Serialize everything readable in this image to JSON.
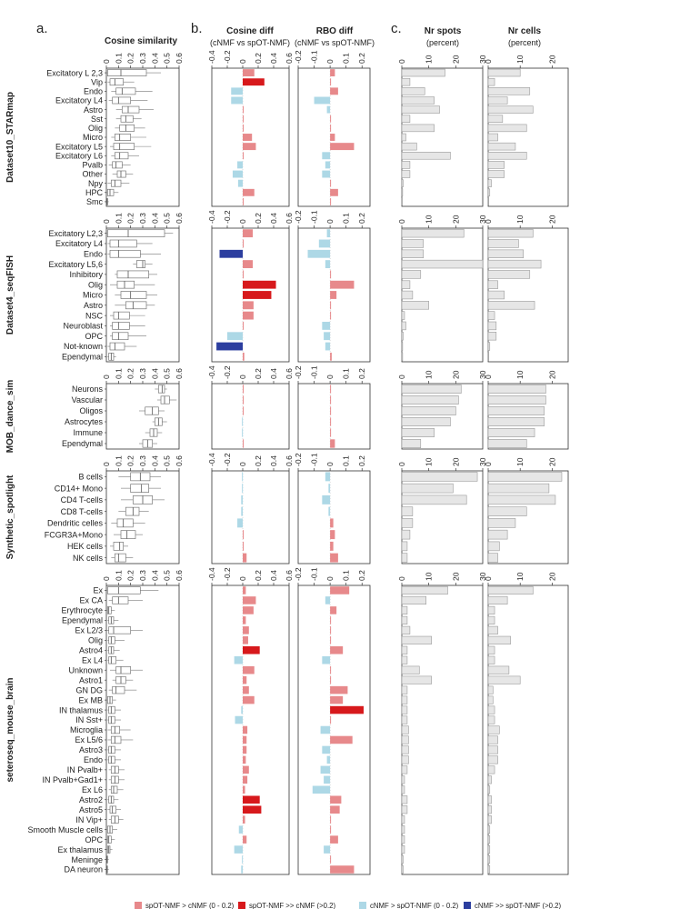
{
  "panels": {
    "a": "a.",
    "b": "b.",
    "c": "c.",
    "cosine_similarity": "Cosine similarity",
    "cosine_diff": "Cosine diff",
    "cosine_diff_sub": "(cNMF vs spOT-NMF)",
    "rbo_diff": "RBO diff",
    "rbo_diff_sub": "(cNMF vs spOT-NMF)",
    "nr_spots": "Nr spots",
    "nr_spots_sub": "(percent)",
    "nr_cells": "Nr cells",
    "nr_cells_sub": "(percent)"
  },
  "legend": [
    {
      "label": "spOT-NMF > cNMF (0 - 0.2)",
      "color": "#e7898b"
    },
    {
      "label": "spOT-NMF >> cNMF (>0.2)",
      "color": "#d7191c"
    },
    {
      "label": "cNMF > spOT-NMF (0 - 0.2)",
      "color": "#add8e6"
    },
    {
      "label": "cNMF >> spOT-NMF (>0.2)",
      "color": "#2c3e9f"
    }
  ],
  "colors": {
    "pos_small": "#e7898b",
    "pos_big": "#d7191c",
    "neg_small": "#add8e6",
    "neg_big": "#2c3e9f",
    "count_bar": "#e6e6e6",
    "count_edge": "#9a9a9a"
  },
  "chart_data": {
    "type": "bar",
    "axes": {
      "cosine_similarity": {
        "ticks": [
          "0",
          "0.1",
          "0.2",
          "0.3",
          "0.4",
          "0.5",
          "0.6"
        ],
        "xlim": [
          0,
          0.6
        ]
      },
      "cosine_diff": {
        "ticks": [
          "-0.4",
          "-0.2",
          "0",
          "0.2",
          "0.4",
          "0.6"
        ],
        "xlim": [
          -0.4,
          0.6
        ]
      },
      "rbo_diff": {
        "ticks": [
          "-0.2",
          "-0.1",
          "0",
          "0.1",
          "0.2"
        ],
        "xlim": [
          -0.2,
          0.25
        ]
      },
      "nr_spots": {
        "ticks": [
          "0",
          "10",
          "20",
          "30"
        ],
        "xlim": [
          0,
          30
        ]
      },
      "nr_cells": {
        "ticks": [
          "0",
          "10",
          "20"
        ],
        "xlim": [
          0,
          25
        ]
      }
    },
    "datasets": [
      {
        "name": "Dataset10_STARmap",
        "categories": [
          "Excitatory L 2,3",
          "Vip",
          "Endo",
          "Excitatory L4",
          "Astro",
          "Sst",
          "Olig",
          "Micro",
          "Excitatory L5",
          "Excitatory L6",
          "Pvalb",
          "Other",
          "Npy",
          "HPC",
          "Smc"
        ],
        "box": [
          [
            0,
            0.01,
            0.12,
            0.33,
            0.45
          ],
          [
            0.01,
            0.03,
            0.07,
            0.14,
            0.23
          ],
          [
            0.04,
            0.08,
            0.13,
            0.24,
            0.38
          ],
          [
            0.02,
            0.05,
            0.1,
            0.2,
            0.34
          ],
          [
            0.08,
            0.13,
            0.18,
            0.27,
            0.39
          ],
          [
            0.08,
            0.12,
            0.16,
            0.22,
            0.29
          ],
          [
            0.07,
            0.11,
            0.16,
            0.23,
            0.32
          ],
          [
            0.04,
            0.07,
            0.11,
            0.2,
            0.33
          ],
          [
            0.03,
            0.06,
            0.11,
            0.23,
            0.37
          ],
          [
            0.04,
            0.07,
            0.11,
            0.18,
            0.27
          ],
          [
            0.02,
            0.05,
            0.08,
            0.13,
            0.2
          ],
          [
            0.05,
            0.09,
            0.12,
            0.16,
            0.22
          ],
          [
            0.01,
            0.04,
            0.07,
            0.12,
            0.19
          ],
          [
            0,
            0.01,
            0.03,
            0.06,
            0.1
          ],
          [
            0,
            0.003,
            0.006,
            0.01,
            0.02
          ]
        ],
        "cos_diff": [
          0.15,
          0.28,
          -0.15,
          -0.15,
          0,
          0,
          0,
          0.12,
          0.17,
          0,
          -0.07,
          -0.13,
          -0.06,
          0.15,
          0
        ],
        "rbo_diff": [
          0.03,
          0,
          0.05,
          -0.1,
          -0.02,
          0,
          0,
          0.03,
          0.15,
          -0.05,
          -0.03,
          -0.05,
          0,
          0.05,
          0
        ],
        "nr_spots": [
          16,
          3,
          8.5,
          12,
          14,
          3,
          12,
          1.5,
          5.5,
          18,
          3,
          3,
          0.5,
          0.3,
          0.1
        ],
        "nr_cells": [
          10,
          2,
          13,
          6,
          14,
          4.5,
          12,
          3,
          8.5,
          12,
          5,
          5,
          1,
          0.5,
          0.2
        ]
      },
      {
        "name": "Dataset4_seqFISH",
        "categories": [
          "Excitatory L2,3",
          "Excitatory L4",
          "Endo",
          "Excitatory L5,6",
          "Inhibitory",
          "Olig",
          "Micro",
          "Astro",
          "NSC",
          "Neuroblast",
          "OPC",
          "Not-known",
          "Ependymal"
        ],
        "box": [
          [
            0,
            0.01,
            0.18,
            0.48,
            0.55
          ],
          [
            0.01,
            0.03,
            0.1,
            0.25,
            0.38
          ],
          [
            0.01,
            0.03,
            0.1,
            0.28,
            0.45
          ],
          [
            0.22,
            0.25,
            0.3,
            0.32,
            0.38
          ],
          [
            0.07,
            0.09,
            0.18,
            0.35,
            0.42
          ],
          [
            0.03,
            0.09,
            0.15,
            0.23,
            0.4
          ],
          [
            0.07,
            0.12,
            0.2,
            0.33,
            0.42
          ],
          [
            0.07,
            0.16,
            0.22,
            0.33,
            0.4
          ],
          [
            0.03,
            0.06,
            0.1,
            0.19,
            0.32
          ],
          [
            0.03,
            0.05,
            0.1,
            0.19,
            0.32
          ],
          [
            0.03,
            0.05,
            0.1,
            0.18,
            0.33
          ],
          [
            0.01,
            0.03,
            0.07,
            0.15,
            0.25
          ],
          [
            0.01,
            0.02,
            0.04,
            0.06,
            0.08
          ]
        ],
        "cos_diff": [
          0.13,
          0,
          -0.3,
          0.13,
          0,
          0.43,
          0.37,
          0.14,
          0.14,
          0,
          -0.2,
          -0.34,
          0.02
        ],
        "rbo_diff": [
          -0.02,
          -0.07,
          -0.14,
          -0.03,
          0,
          0.15,
          0.04,
          0,
          0,
          -0.05,
          -0.04,
          -0.03,
          0.01
        ],
        "nr_spots": [
          23,
          8,
          8,
          30,
          7,
          3,
          4,
          10,
          1,
          1.5,
          0.5,
          0.3,
          0.3
        ],
        "nr_cells": [
          14,
          9.5,
          11,
          16.5,
          13,
          3,
          5,
          14.5,
          2,
          2.5,
          2.5,
          0.5,
          0.2
        ]
      },
      {
        "name": "MOB_dance_sim",
        "categories": [
          "Neurons",
          "Vascular",
          "Oligos",
          "Astrocytes",
          "Immune",
          "Ependymal"
        ],
        "box": [
          [
            0.4,
            0.43,
            0.46,
            0.48,
            0.5
          ],
          [
            0.42,
            0.45,
            0.48,
            0.52,
            0.58
          ],
          [
            0.27,
            0.32,
            0.38,
            0.43,
            0.48
          ],
          [
            0.38,
            0.4,
            0.43,
            0.46,
            0.5
          ],
          [
            0.32,
            0.36,
            0.39,
            0.42,
            0.46
          ],
          [
            0.27,
            0.3,
            0.34,
            0.38,
            0.42
          ]
        ],
        "cos_diff": [
          0,
          0,
          0,
          -0.01,
          -0.01,
          0
        ],
        "rbo_diff": [
          0,
          0,
          0,
          0,
          0,
          0.03
        ],
        "nr_spots": [
          22,
          21,
          20,
          18,
          12,
          7
        ],
        "nr_cells": [
          18,
          18,
          17.5,
          17.5,
          14.5,
          12
        ]
      },
      {
        "name": "Synthetic_spotlight",
        "categories": [
          "B cells",
          "CD14+ Mono",
          "CD4 T-cells",
          "CD8 T-cells",
          "Dendritic celles",
          "FCGR3A+Mono",
          "HEK cells",
          "NK cells"
        ],
        "box": [
          [
            0.1,
            0.2,
            0.28,
            0.36,
            0.45
          ],
          [
            0.12,
            0.2,
            0.29,
            0.35,
            0.45
          ],
          [
            0.12,
            0.22,
            0.3,
            0.38,
            0.48
          ],
          [
            0.1,
            0.16,
            0.22,
            0.27,
            0.35
          ],
          [
            0.04,
            0.09,
            0.14,
            0.22,
            0.32
          ],
          [
            0.06,
            0.12,
            0.17,
            0.24,
            0.3
          ],
          [
            0.03,
            0.06,
            0.11,
            0.14,
            0.18
          ],
          [
            0.04,
            0.07,
            0.1,
            0.16,
            0.22
          ]
        ],
        "cos_diff": [
          -0.01,
          -0.01,
          -0.02,
          -0.02,
          -0.07,
          0,
          0,
          0.05
        ],
        "rbo_diff": [
          -0.03,
          -0.01,
          -0.05,
          -0.01,
          0.02,
          0.03,
          0.02,
          0.05
        ],
        "nr_spots": [
          28,
          19,
          24,
          4,
          4,
          3,
          2,
          2
        ],
        "nr_cells": [
          23,
          19,
          21,
          12,
          8.5,
          6,
          3.5,
          3
        ]
      },
      {
        "name": "seteroseq_mouse_brain",
        "categories": [
          "Ex",
          "Ex CA",
          "Erythrocyte",
          "Ependymal",
          "Ex L2/3",
          "Olig",
          "Astro4",
          "Ex L4",
          "Unknown",
          "Astro1",
          "GN DG",
          "Ex MB",
          "IN thalamus",
          "IN Sst+",
          "Microglia",
          "Ex L5/6",
          "Astro3",
          "Endo",
          "IN Pvalb+",
          "IN Pvalb+Gad1+",
          "Ex L6",
          "Astro2",
          "Astro5",
          "IN Vip+",
          "Smooth Muscle cells",
          "OPC",
          "Ex thalamus",
          "Meninge",
          "DA neuron"
        ],
        "box": [
          [
            0,
            0.01,
            0.1,
            0.28,
            0.43
          ],
          [
            0.02,
            0.05,
            0.1,
            0.18,
            0.3
          ],
          [
            0,
            0.01,
            0.02,
            0.04,
            0.07
          ],
          [
            0.01,
            0.02,
            0.04,
            0.06,
            0.1
          ],
          [
            0,
            0.02,
            0.06,
            0.2,
            0.3
          ],
          [
            0.01,
            0.02,
            0.04,
            0.07,
            0.15
          ],
          [
            0.01,
            0.02,
            0.04,
            0.06,
            0.11
          ],
          [
            0.01,
            0.02,
            0.04,
            0.08,
            0.14
          ],
          [
            0.03,
            0.08,
            0.12,
            0.2,
            0.3
          ],
          [
            0.05,
            0.08,
            0.12,
            0.16,
            0.22
          ],
          [
            0.02,
            0.05,
            0.08,
            0.15,
            0.25
          ],
          [
            0,
            0.01,
            0.03,
            0.05,
            0.08
          ],
          [
            0.01,
            0.02,
            0.04,
            0.07,
            0.12
          ],
          [
            0.01,
            0.02,
            0.04,
            0.07,
            0.12
          ],
          [
            0.01,
            0.04,
            0.07,
            0.11,
            0.2
          ],
          [
            0.01,
            0.04,
            0.07,
            0.12,
            0.22
          ],
          [
            0.01,
            0.02,
            0.04,
            0.07,
            0.12
          ],
          [
            0.01,
            0.02,
            0.04,
            0.07,
            0.12
          ],
          [
            0.02,
            0.04,
            0.07,
            0.1,
            0.15
          ],
          [
            0.02,
            0.04,
            0.07,
            0.1,
            0.15
          ],
          [
            0.02,
            0.04,
            0.06,
            0.09,
            0.14
          ],
          [
            0.01,
            0.02,
            0.04,
            0.06,
            0.1
          ],
          [
            0.01,
            0.03,
            0.05,
            0.08,
            0.12
          ],
          [
            0.02,
            0.04,
            0.07,
            0.1,
            0.14
          ],
          [
            0,
            0.01,
            0.03,
            0.05,
            0.09
          ],
          [
            0,
            0.01,
            0.02,
            0.04,
            0.07
          ],
          [
            0,
            0.01,
            0.02,
            0.03,
            0.05
          ],
          [
            0,
            0.002,
            0.005,
            0.01,
            0.02
          ],
          [
            0,
            0.002,
            0.004,
            0.008,
            0.02
          ]
        ],
        "cos_diff": [
          0.04,
          0.17,
          0.14,
          0.04,
          0.08,
          0.07,
          0.22,
          -0.11,
          0.15,
          0.05,
          0.08,
          0.15,
          -0.02,
          -0.1,
          0.06,
          0.05,
          0.05,
          0.04,
          0.08,
          0.06,
          0.03,
          0.22,
          0.24,
          0.03,
          -0.05,
          0.05,
          -0.11,
          -0.01,
          -0.02
        ],
        "rbo_diff": [
          0.12,
          -0.03,
          0.04,
          0,
          0,
          0,
          0.08,
          -0.05,
          0,
          0,
          0.11,
          0.08,
          0.21,
          0,
          -0.06,
          0.14,
          -0.05,
          -0.02,
          -0.06,
          -0.04,
          -0.11,
          0.07,
          0.06,
          0,
          0,
          0.05,
          -0.04,
          0,
          0.15
        ],
        "nr_spots": [
          17,
          9,
          2,
          2,
          3,
          11,
          2,
          2,
          6.5,
          11,
          2,
          2,
          2,
          2,
          2.5,
          2.5,
          2.5,
          2.5,
          2,
          1,
          1,
          2,
          2,
          1,
          1,
          1,
          1,
          0.5,
          0.5
        ],
        "nr_cells": [
          14,
          6,
          2,
          2,
          3,
          7,
          2,
          2,
          6.5,
          10,
          1.5,
          1.5,
          2,
          2,
          3.5,
          3,
          3,
          3,
          2,
          1,
          0.5,
          1,
          1,
          1,
          0.5,
          0.5,
          0.5,
          0.5,
          0.5
        ]
      }
    ]
  }
}
